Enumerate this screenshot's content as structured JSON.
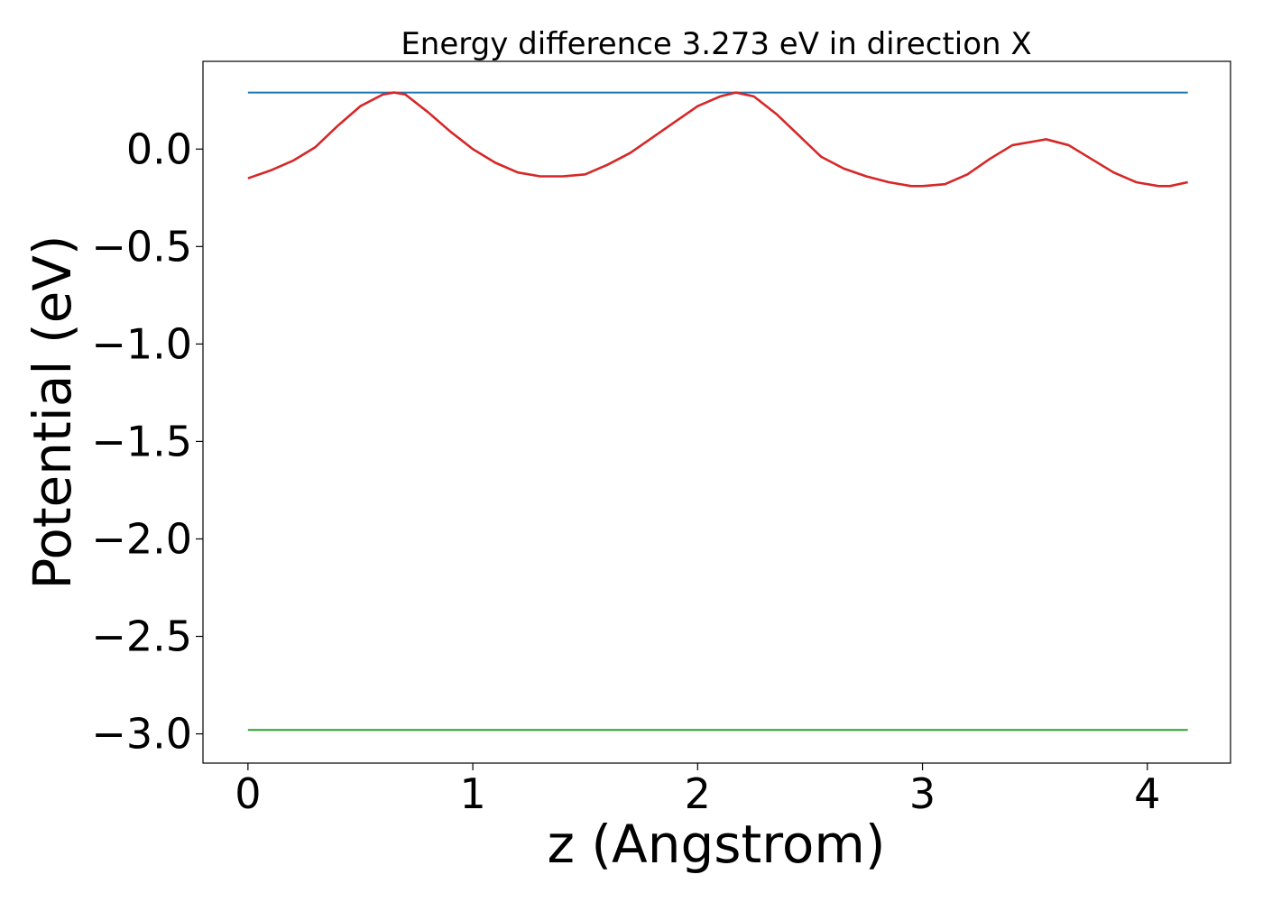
{
  "chart_data": {
    "type": "line",
    "title": "Energy difference 3.273 eV in direction X",
    "xlabel": "z (Angstrom)",
    "ylabel": "Potential (eV)",
    "xlim": [
      -0.2,
      4.37
    ],
    "ylim": [
      -3.15,
      0.45
    ],
    "xticks": [
      0,
      1,
      2,
      3,
      4
    ],
    "xtick_labels": [
      "0",
      "1",
      "2",
      "3",
      "4"
    ],
    "yticks": [
      0.0,
      -0.5,
      -1.0,
      -1.5,
      -2.0,
      -2.5,
      -3.0
    ],
    "ytick_labels": [
      "0.0",
      "−0.5",
      "−1.0",
      "−1.5",
      "−2.0",
      "−2.5",
      "−3.0"
    ],
    "grid": false,
    "series": [
      {
        "color": "#1f77b4",
        "x": [
          0,
          4.18
        ],
        "y": [
          0.29,
          0.29
        ]
      },
      {
        "color": "#2ca02c",
        "x": [
          0,
          4.18
        ],
        "y": [
          -2.98,
          -2.98
        ]
      },
      {
        "color": "#d62728",
        "x": [
          0,
          0.1,
          0.2,
          0.3,
          0.4,
          0.5,
          0.6,
          0.65,
          0.7,
          0.8,
          0.9,
          1.0,
          1.1,
          1.2,
          1.3,
          1.4,
          1.5,
          1.6,
          1.7,
          1.8,
          1.9,
          2.0,
          2.1,
          2.17,
          2.25,
          2.35,
          2.45,
          2.55,
          2.65,
          2.75,
          2.85,
          2.95,
          3.0,
          3.1,
          3.2,
          3.3,
          3.4,
          3.5,
          3.55,
          3.65,
          3.75,
          3.85,
          3.95,
          4.05,
          4.1,
          4.18
        ],
        "y": [
          -0.15,
          -0.11,
          -0.06,
          0.01,
          0.12,
          0.22,
          0.28,
          0.29,
          0.28,
          0.19,
          0.09,
          0.0,
          -0.07,
          -0.12,
          -0.14,
          -0.14,
          -0.13,
          -0.08,
          -0.02,
          0.06,
          0.14,
          0.22,
          0.27,
          0.29,
          0.27,
          0.18,
          0.07,
          -0.04,
          -0.1,
          -0.14,
          -0.17,
          -0.19,
          -0.19,
          -0.18,
          -0.13,
          -0.05,
          0.02,
          0.04,
          0.05,
          0.02,
          -0.05,
          -0.12,
          -0.17,
          -0.19,
          -0.19,
          -0.17
        ]
      }
    ]
  }
}
